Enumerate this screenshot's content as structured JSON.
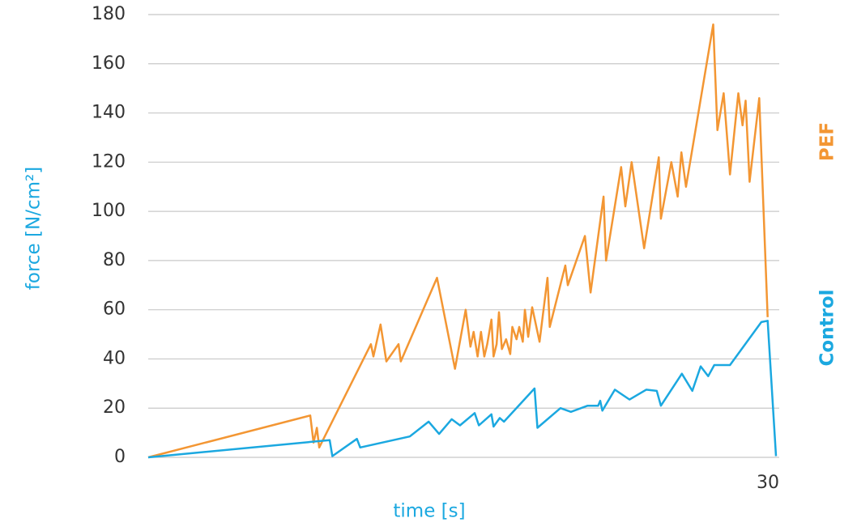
{
  "chart_data": {
    "type": "line",
    "y_label": "force [N/cm²]",
    "x_label": "time [s]",
    "xlim": [
      0,
      30
    ],
    "xticks": [
      30
    ],
    "ylim": [
      0,
      180
    ],
    "yticks": [
      0,
      20,
      40,
      60,
      80,
      100,
      120,
      140,
      160,
      180
    ],
    "grid": true,
    "series": [
      {
        "name": "PEF",
        "color": "#f39633",
        "x": [
          0,
          7.74,
          7.9,
          8.06,
          8.17,
          10.64,
          10.76,
          11.1,
          11.38,
          11.96,
          12.07,
          13.8,
          14.66,
          15.17,
          15.4,
          15.55,
          15.74,
          15.9,
          16.06,
          16.2,
          16.4,
          16.5,
          16.65,
          16.76,
          16.9,
          17.1,
          17.3,
          17.4,
          17.6,
          17.73,
          17.9,
          18.0,
          18.16,
          18.35,
          18.7,
          19.08,
          19.19,
          19.93,
          20.05,
          20.87,
          21.14,
          21.76,
          21.88,
          22.6,
          22.8,
          23.1,
          23.7,
          24.4,
          24.5,
          25.0,
          25.3,
          25.48,
          25.7,
          27.0,
          27.2,
          27.5,
          27.8,
          28.2,
          28.4,
          28.55,
          28.74,
          29.2,
          29.6
        ],
        "values": [
          0,
          17,
          6,
          12,
          4,
          46,
          41,
          54,
          39,
          46,
          39,
          73,
          36,
          60,
          45,
          51,
          41,
          51,
          41,
          46,
          56,
          41,
          46,
          59,
          44,
          48,
          42,
          53,
          48,
          53,
          47,
          60,
          49,
          61,
          47,
          73,
          53,
          78,
          70,
          90,
          67,
          106,
          80,
          118,
          102,
          120,
          85,
          122,
          97,
          120,
          106,
          124,
          110,
          176,
          133,
          148,
          115,
          148,
          135,
          145,
          112,
          146,
          57
        ]
      },
      {
        "name": "Control",
        "color": "#1ba8e0",
        "x": [
          0,
          8.67,
          8.8,
          9.97,
          10.13,
          12.5,
          13.4,
          13.9,
          14.5,
          14.9,
          15.6,
          15.8,
          16.4,
          16.5,
          16.8,
          17.0,
          18.46,
          18.6,
          19.7,
          20.2,
          21.0,
          21.5,
          21.6,
          21.7,
          22.3,
          23.0,
          23.8,
          24.3,
          24.5,
          25.5,
          26.0,
          26.4,
          26.76,
          27.05,
          27.8,
          29.3,
          29.6,
          30
        ],
        "values": [
          0,
          7,
          0.5,
          7.5,
          4,
          8.5,
          14.5,
          9.5,
          15.5,
          13,
          18,
          13,
          17.5,
          12.5,
          16,
          14.5,
          28,
          12,
          20,
          18.5,
          21,
          21,
          23,
          19,
          27.5,
          23.5,
          27.5,
          27,
          21,
          34,
          27,
          37,
          33,
          37.5,
          37.5,
          55,
          55.5,
          0.5
        ]
      }
    ]
  }
}
